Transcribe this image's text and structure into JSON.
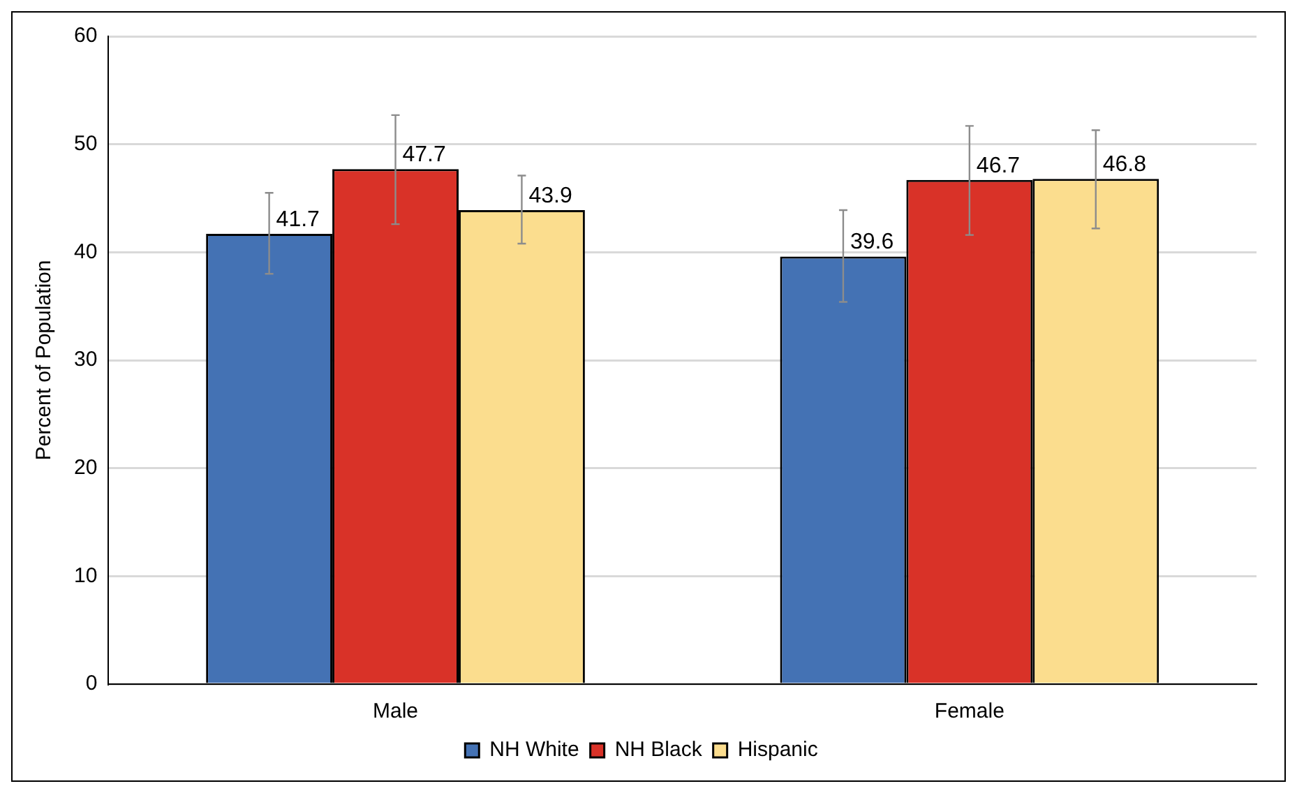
{
  "chart_data": {
    "type": "bar",
    "ylabel": "Percent of Population",
    "categories": [
      "Male",
      "Female"
    ],
    "series": [
      {
        "name": "NH White",
        "color": "#4472b4",
        "values": [
          41.7,
          39.6
        ],
        "errors": [
          [
            38.0,
            45.5
          ],
          [
            35.4,
            43.9
          ]
        ]
      },
      {
        "name": "NH Black",
        "color": "#d93228",
        "values": [
          47.7,
          46.7
        ],
        "errors": [
          [
            42.6,
            52.7
          ],
          [
            41.6,
            51.7
          ]
        ]
      },
      {
        "name": "Hispanic",
        "color": "#fbdd8e",
        "values": [
          43.9,
          46.8
        ],
        "errors": [
          [
            40.8,
            47.1
          ],
          [
            42.2,
            51.3
          ]
        ]
      }
    ],
    "ylim": [
      0,
      60
    ],
    "yticks": [
      0,
      10,
      20,
      30,
      40,
      50,
      60
    ],
    "grid": "y",
    "legend": "bottom",
    "data_labels": true
  }
}
